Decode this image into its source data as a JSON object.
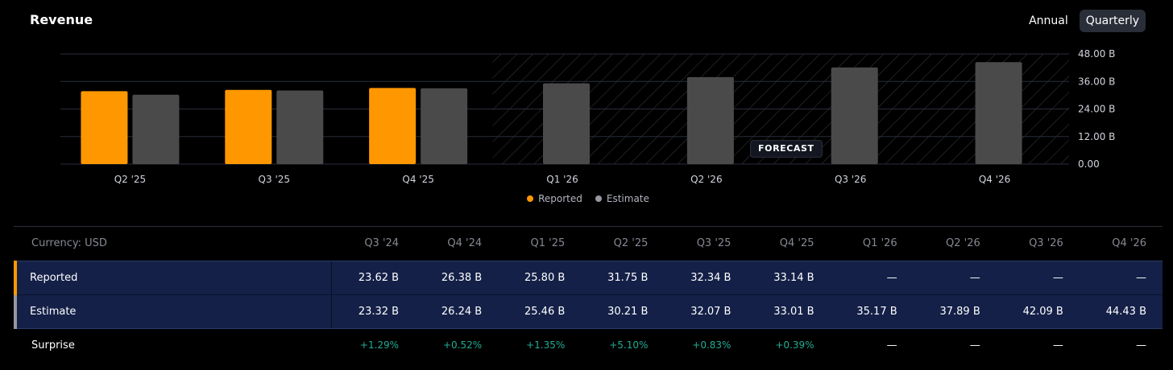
{
  "header": {
    "title": "Revenue",
    "toggle_annual": "Annual",
    "toggle_quarterly": "Quarterly"
  },
  "colors": {
    "reported": "#ff9800",
    "estimate": "#4a4a4a",
    "legend_estimate": "#9598a1",
    "positive": "#22ab94"
  },
  "forecast_label": "FORECAST",
  "legend": {
    "reported": "Reported",
    "estimate": "Estimate"
  },
  "chart_data": {
    "type": "bar",
    "title": "Revenue",
    "categories": [
      "Q2 '25",
      "Q3 '25",
      "Q4 '25",
      "Q1 '26",
      "Q2 '26",
      "Q3 '26",
      "Q4 '26"
    ],
    "series": [
      {
        "name": "Reported",
        "values": [
          31.75,
          32.34,
          33.14,
          null,
          null,
          null,
          null
        ]
      },
      {
        "name": "Estimate",
        "values": [
          30.21,
          32.07,
          33.01,
          35.17,
          37.89,
          42.09,
          44.43
        ]
      }
    ],
    "forecast_start_index": 3,
    "ylim": [
      0,
      48
    ],
    "yticks": [
      "48.00 B",
      "36.00 B",
      "24.00 B",
      "12.00 B",
      "0.00"
    ],
    "ytick_values": [
      48,
      36,
      24,
      12,
      0
    ],
    "grid": true,
    "legend_position": "bottom-center"
  },
  "table": {
    "currency_label": "Currency: USD",
    "periods": [
      "Q3 '24",
      "Q4 '24",
      "Q1 '25",
      "Q2 '25",
      "Q3 '25",
      "Q4 '25",
      "Q1 '26",
      "Q2 '26",
      "Q3 '26",
      "Q4 '26"
    ],
    "rows": [
      {
        "label": "Reported",
        "values": [
          "23.62 B",
          "26.38 B",
          "25.80 B",
          "31.75 B",
          "32.34 B",
          "33.14 B",
          "—",
          "—",
          "—",
          "—"
        ]
      },
      {
        "label": "Estimate",
        "values": [
          "23.32 B",
          "26.24 B",
          "25.46 B",
          "30.21 B",
          "32.07 B",
          "33.01 B",
          "35.17 B",
          "37.89 B",
          "42.09 B",
          "44.43 B"
        ]
      },
      {
        "label": "Surprise",
        "values": [
          "+1.29%",
          "+0.52%",
          "+1.35%",
          "+5.10%",
          "+0.83%",
          "+0.39%",
          "—",
          "—",
          "—",
          "—"
        ]
      }
    ]
  }
}
